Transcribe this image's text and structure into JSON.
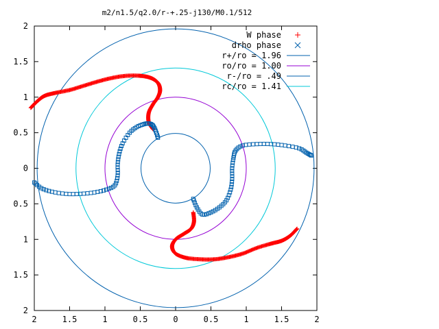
{
  "chart_data": {
    "type": "scatter",
    "title": "m2/n1.5/q2.0/r-+.25-j130/M0.1/512",
    "xlabel": "",
    "ylabel": "",
    "xlim": [
      -2,
      2
    ],
    "ylim": [
      -2,
      2
    ],
    "x_tick_values": [
      -2,
      -1.5,
      -1,
      -0.5,
      0,
      0.5,
      1,
      1.5,
      2
    ],
    "x_tick_labels": [
      "2",
      "1.5",
      "1",
      "0.5",
      "0",
      "0.5",
      "1",
      "1.5",
      "2"
    ],
    "y_tick_values": [
      2,
      1.5,
      1,
      0.5,
      0,
      -0.5,
      -1,
      -1.5,
      -2
    ],
    "y_tick_labels": [
      "2",
      "1.5",
      "1",
      "0.5",
      "0",
      "0.5",
      "1",
      "1.5",
      "2"
    ],
    "grid": false,
    "legend_position": "top-right",
    "series": [
      {
        "name": "W phase",
        "marker": "plus",
        "color": "#ff0000",
        "arms": [
          {
            "points": [
              [
                -2.05,
                0.85
              ],
              [
                -1.95,
                0.95
              ],
              [
                -1.85,
                1.02
              ],
              [
                -1.7,
                1.06
              ],
              [
                -1.5,
                1.1
              ],
              [
                -1.3,
                1.16
              ],
              [
                -1.1,
                1.22
              ],
              [
                -0.9,
                1.27
              ],
              [
                -0.7,
                1.3
              ],
              [
                -0.5,
                1.3
              ],
              [
                -0.35,
                1.27
              ],
              [
                -0.25,
                1.2
              ],
              [
                -0.22,
                1.1
              ],
              [
                -0.25,
                1.0
              ],
              [
                -0.32,
                0.9
              ],
              [
                -0.38,
                0.78
              ],
              [
                -0.38,
                0.65
              ],
              [
                -0.32,
                0.55
              ]
            ]
          },
          {
            "points": [
              [
                1.72,
                -0.85
              ],
              [
                1.62,
                -0.95
              ],
              [
                1.5,
                -1.02
              ],
              [
                1.35,
                -1.06
              ],
              [
                1.15,
                -1.12
              ],
              [
                0.95,
                -1.2
              ],
              [
                0.75,
                -1.25
              ],
              [
                0.55,
                -1.28
              ],
              [
                0.35,
                -1.28
              ],
              [
                0.15,
                -1.26
              ],
              [
                0.0,
                -1.2
              ],
              [
                -0.05,
                -1.1
              ],
              [
                0.0,
                -1.0
              ],
              [
                0.12,
                -0.92
              ],
              [
                0.22,
                -0.85
              ],
              [
                0.26,
                -0.75
              ],
              [
                0.25,
                -0.62
              ]
            ]
          }
        ]
      },
      {
        "name": "drho phase",
        "marker": "square",
        "color": "#0060ad",
        "arms": [
          {
            "points": [
              [
                -2.0,
                -0.2
              ],
              [
                -1.9,
                -0.28
              ],
              [
                -1.75,
                -0.33
              ],
              [
                -1.55,
                -0.36
              ],
              [
                -1.35,
                -0.36
              ],
              [
                -1.15,
                -0.34
              ],
              [
                -0.98,
                -0.3
              ],
              [
                -0.86,
                -0.24
              ],
              [
                -0.82,
                -0.1
              ],
              [
                -0.82,
                0.05
              ],
              [
                -0.8,
                0.2
              ],
              [
                -0.75,
                0.35
              ],
              [
                -0.65,
                0.5
              ],
              [
                -0.55,
                0.58
              ],
              [
                -0.45,
                0.62
              ],
              [
                -0.38,
                0.63
              ],
              [
                -0.32,
                0.6
              ],
              [
                -0.28,
                0.52
              ],
              [
                -0.25,
                0.43
              ]
            ]
          },
          {
            "points": [
              [
                0.25,
                -0.43
              ],
              [
                0.3,
                -0.55
              ],
              [
                0.38,
                -0.65
              ],
              [
                0.5,
                -0.62
              ],
              [
                0.62,
                -0.55
              ],
              [
                0.72,
                -0.45
              ],
              [
                0.78,
                -0.3
              ],
              [
                0.8,
                -0.15
              ],
              [
                0.8,
                0.0
              ],
              [
                0.82,
                0.15
              ],
              [
                0.85,
                0.25
              ],
              [
                0.95,
                0.32
              ],
              [
                1.15,
                0.34
              ],
              [
                1.35,
                0.34
              ],
              [
                1.55,
                0.32
              ],
              [
                1.75,
                0.28
              ],
              [
                1.85,
                0.22
              ],
              [
                1.92,
                0.18
              ]
            ]
          }
        ]
      },
      {
        "name": "r+/ro = 1.96",
        "type": "circle",
        "radius": 1.96,
        "color": "#0060ad"
      },
      {
        "name": "ro/ro = 1.00",
        "type": "circle",
        "radius": 1.0,
        "color": "#9400d3"
      },
      {
        "name": "r-/ro = .49",
        "type": "circle",
        "radius": 0.49,
        "color": "#0060ad"
      },
      {
        "name": "rc/ro = 1.41",
        "type": "circle",
        "radius": 1.41,
        "color": "#00c8d8"
      }
    ]
  }
}
